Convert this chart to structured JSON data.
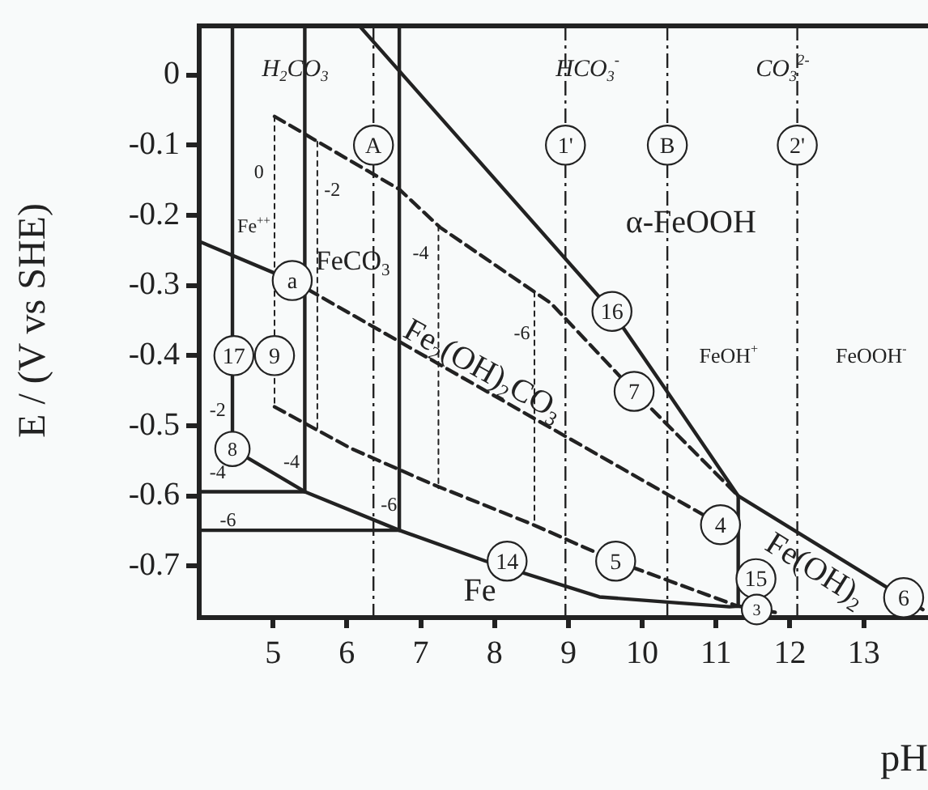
{
  "chart_data": {
    "type": "line",
    "xlabel": "pH",
    "ylabel": "E / (V vs SHE)",
    "xlim": [
      4,
      13.87
    ],
    "ylim": [
      -0.77,
      0.07
    ],
    "xticks": [
      5,
      6,
      7,
      8,
      9,
      10,
      11,
      12,
      13
    ],
    "yticks": [
      0,
      -0.1,
      -0.2,
      -0.3,
      -0.4,
      -0.5,
      -0.6,
      -0.7
    ],
    "grid": false,
    "legend": false,
    "series": [
      {
        "line_style": "solid",
        "color": "#222222",
        "x": [
          6.17,
          9.59,
          10.29,
          11.3,
          13.54,
          13.8
        ],
        "values": [
          0.07,
          -0.337,
          -0.444,
          -0.6,
          -0.745,
          -0.762
        ]
      },
      {
        "line_style": "solid",
        "color": "#222222",
        "x": [
          11.3,
          11.3
        ],
        "values": [
          -0.6,
          -0.757
        ]
      },
      {
        "line_style": "solid",
        "color": "#222222",
        "x": [
          4.45,
          5.43,
          6.71,
          7.88,
          9.42,
          11.18,
          11.3,
          11.8
        ],
        "values": [
          -0.533,
          -0.594,
          -0.649,
          -0.693,
          -0.744,
          -0.758,
          -0.757,
          -0.766
        ]
      },
      {
        "line_style": "solid",
        "color": "#222222",
        "x": [
          4.45,
          4.45
        ],
        "values": [
          0.07,
          -0.533
        ]
      },
      {
        "line_style": "solid",
        "color": "#222222",
        "x": [
          5.43,
          5.43
        ],
        "values": [
          0.07,
          -0.594
        ]
      },
      {
        "line_style": "solid",
        "color": "#222222",
        "x": [
          6.71,
          6.71
        ],
        "values": [
          0.07,
          -0.649
        ]
      },
      {
        "line_style": "solid",
        "color": "#222222",
        "x": [
          4,
          5.43
        ],
        "values": [
          -0.594,
          -0.594
        ]
      },
      {
        "line_style": "solid",
        "color": "#222222",
        "x": [
          4,
          6.71
        ],
        "values": [
          -0.649,
          -0.649
        ]
      },
      {
        "line_style": "solid",
        "color": "#222222",
        "x": [
          4.02,
          5.26
        ],
        "values": [
          -0.238,
          -0.293
        ]
      },
      {
        "line_style": "dashed",
        "color": "#222222",
        "x": [
          5.26,
          11.06
        ],
        "values": [
          -0.293,
          -0.641
        ]
      },
      {
        "line_style": "dashed",
        "color": "#222222",
        "x": [
          5.02,
          6.71,
          7.26,
          8.76,
          9.89,
          11.3
        ],
        "values": [
          -0.059,
          -0.163,
          -0.217,
          -0.325,
          -0.451,
          -0.6
        ]
      },
      {
        "line_style": "dashed",
        "color": "#222222",
        "x": [
          5.02,
          6.05,
          7.15,
          8.5,
          9.64,
          11.24,
          11.3
        ],
        "values": [
          -0.473,
          -0.532,
          -0.583,
          -0.64,
          -0.693,
          -0.755,
          -0.757
        ]
      },
      {
        "line_style": "dotted",
        "color": "#222222",
        "x": [
          5.02,
          5.02
        ],
        "values": [
          -0.059,
          -0.473
        ]
      },
      {
        "line_style": "dotted",
        "color": "#222222",
        "x": [
          5.6,
          5.6
        ],
        "values": [
          -0.095,
          -0.506
        ]
      },
      {
        "line_style": "dotted",
        "color": "#222222",
        "x": [
          7.24,
          7.24
        ],
        "values": [
          -0.215,
          -0.589
        ]
      },
      {
        "line_style": "dotted",
        "color": "#222222",
        "x": [
          8.54,
          8.54
        ],
        "values": [
          -0.309,
          -0.64
        ]
      }
    ],
    "ref_lines": [
      {
        "axis": "x",
        "value": 6.36,
        "line_style": "dashed"
      },
      {
        "axis": "x",
        "value": 8.96,
        "line_style": "dashed"
      },
      {
        "axis": "x",
        "value": 10.34,
        "line_style": "dashed"
      },
      {
        "axis": "x",
        "value": 12.1,
        "line_style": "dashed"
      }
    ],
    "annotations": [
      "H$_{2}$CO$_{3}$",
      "HCO$_{3}$$^{-}$",
      "CO$_{3}$$^{2-}$",
      "α-FeOOH",
      "Fe$^{++}$",
      "FeCO$_{3}$",
      "Fe$_{2}$(OH)$_{2}$CO$_{3}$",
      "FeOH$^{+}$",
      "FeOOH$^{-}$",
      "Fe(OH)$_{2}$",
      "Fe",
      "0",
      "-2",
      "-4",
      "-6",
      "-2",
      "-4",
      "-6",
      "-4",
      "-6",
      "A",
      "1'",
      "B",
      "2'",
      "a",
      "16",
      "7",
      "17",
      "9",
      "8",
      "14",
      "4",
      "5",
      "15",
      "3",
      "6"
    ]
  }
}
